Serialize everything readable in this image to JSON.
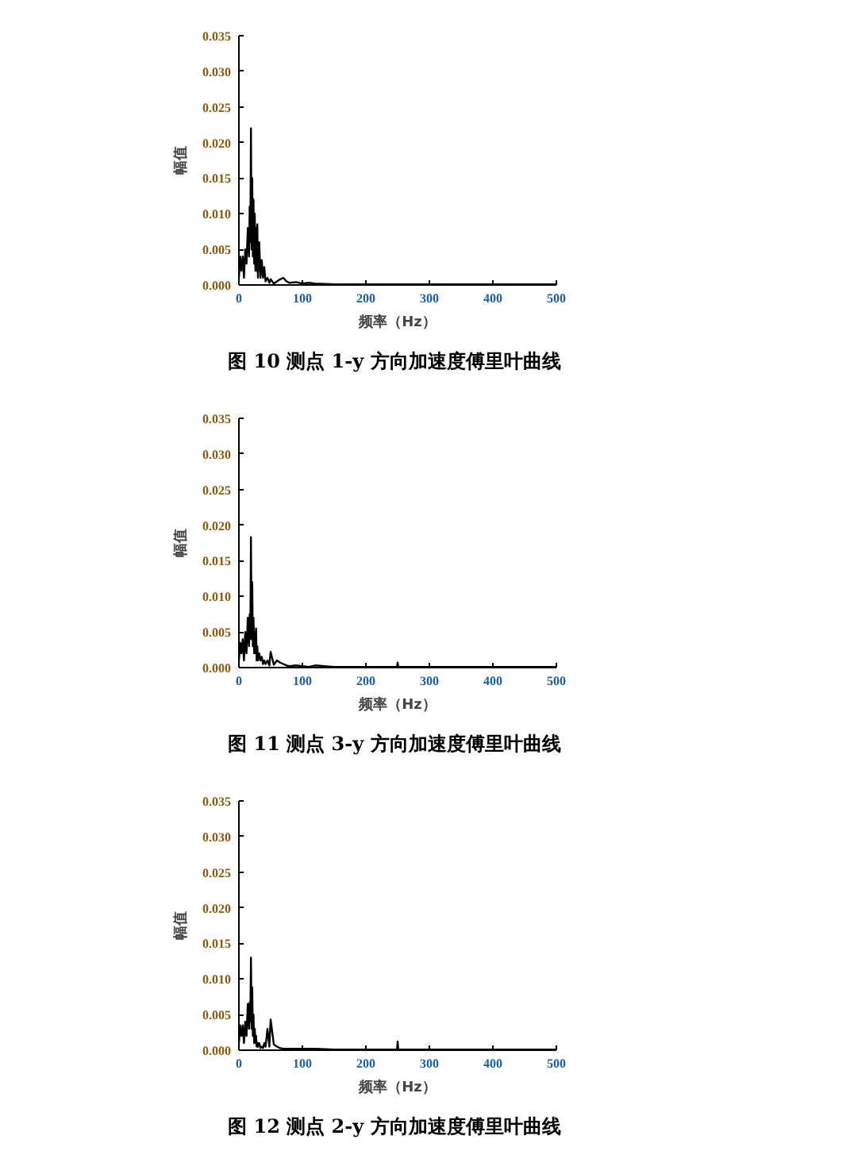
{
  "chart_data": [
    {
      "type": "line",
      "title": "图 10  测点 1-y 方向加速度傅里叶曲线",
      "xlabel": "频率（Hz）",
      "ylabel": "幅值",
      "xlim": [
        0,
        500
      ],
      "xticks": [
        0,
        100,
        200,
        300,
        400,
        500
      ],
      "ylim": [
        0,
        0.035
      ],
      "yticks": [
        {
          "value": 0,
          "label": "0.000"
        },
        {
          "value": 0.005,
          "label": "0.005"
        },
        {
          "value": 0.01,
          "label": "0.010"
        },
        {
          "value": 0.015,
          "label": "0.015"
        },
        {
          "value": 0.02,
          "label": "0.020"
        },
        {
          "value": 0.025,
          "label": "0.025"
        },
        {
          "value": 0.03,
          "label": "0.030"
        },
        {
          "value": 0.035,
          "label": "0.035"
        }
      ],
      "x": [
        0,
        2,
        4,
        6,
        8,
        10,
        12,
        14,
        16,
        17,
        18,
        19,
        20,
        21,
        22,
        23,
        24,
        25,
        26,
        27,
        28,
        29,
        30,
        32,
        34,
        36,
        38,
        40,
        42,
        45,
        48,
        50,
        55,
        60,
        65,
        70,
        75,
        80,
        90,
        100,
        110,
        120,
        150,
        200,
        249,
        250,
        251,
        300,
        350,
        400,
        450,
        500
      ],
      "series": [
        {
          "color": "#000000",
          "values": [
            0.001,
            0.004,
            0.002,
            0.004,
            0.001,
            0.005,
            0.003,
            0.008,
            0.004,
            0.011,
            0.006,
            0.022,
            0.005,
            0.015,
            0.004,
            0.012,
            0.003,
            0.01,
            0.002,
            0.008,
            0.002,
            0.0085,
            0.001,
            0.006,
            0.001,
            0.0035,
            0.001,
            0.0025,
            0.0005,
            0.001,
            0.0003,
            0.0008,
            0.0002,
            0.0005,
            0.0008,
            0.001,
            0.0005,
            0.0003,
            0.0004,
            0.0002,
            0.0003,
            0.0002,
            0.0001,
            0.0001,
            0.0001,
            0.0001,
            0.0001,
            0.0001,
            0.0001,
            0.0001,
            0.0001,
            0.0001
          ]
        }
      ]
    },
    {
      "type": "line",
      "title": "图 11  测点 3-y 方向加速度傅里叶曲线",
      "xlabel": "频率（Hz）",
      "ylabel": "幅值",
      "xlim": [
        0,
        500
      ],
      "xticks": [
        0,
        100,
        200,
        300,
        400,
        500
      ],
      "ylim": [
        0,
        0.035
      ],
      "yticks": [
        {
          "value": 0,
          "label": "0.000"
        },
        {
          "value": 0.005,
          "label": "0.005"
        },
        {
          "value": 0.01,
          "label": "0.010"
        },
        {
          "value": 0.015,
          "label": "0.015"
        },
        {
          "value": 0.02,
          "label": "0.020"
        },
        {
          "value": 0.025,
          "label": "0.025"
        },
        {
          "value": 0.03,
          "label": "0.030"
        },
        {
          "value": 0.035,
          "label": "0.035"
        }
      ],
      "x": [
        0,
        2,
        4,
        6,
        8,
        10,
        12,
        14,
        16,
        17,
        18,
        19,
        20,
        21,
        22,
        23,
        24,
        25,
        26,
        27,
        28,
        29,
        30,
        32,
        34,
        36,
        38,
        40,
        42,
        45,
        48,
        50,
        55,
        60,
        65,
        70,
        75,
        80,
        90,
        100,
        110,
        120,
        150,
        200,
        249,
        250,
        251,
        300,
        350,
        400,
        450,
        500
      ],
      "series": [
        {
          "color": "#000000",
          "values": [
            0.001,
            0.0035,
            0.002,
            0.004,
            0.001,
            0.005,
            0.002,
            0.007,
            0.003,
            0.0075,
            0.004,
            0.0183,
            0.004,
            0.012,
            0.003,
            0.007,
            0.002,
            0.005,
            0.002,
            0.0055,
            0.001,
            0.003,
            0.001,
            0.002,
            0.001,
            0.0015,
            0.0005,
            0.001,
            0.0005,
            0.001,
            0.0003,
            0.0022,
            0.0004,
            0.001,
            0.0007,
            0.0005,
            0.0003,
            0.0002,
            0.0003,
            0.0002,
            0.0001,
            0.0003,
            0.0001,
            0.0001,
            0.0001,
            0.0007,
            0.0001,
            0.0001,
            0.0001,
            0.0001,
            0.0001,
            0.0001
          ]
        }
      ]
    },
    {
      "type": "line",
      "title": "图 12  测点 2-y 方向加速度傅里叶曲线",
      "xlabel": "频率（Hz）",
      "ylabel": "幅值",
      "xlim": [
        0,
        500
      ],
      "xticks": [
        0,
        100,
        200,
        300,
        400,
        500
      ],
      "ylim": [
        0,
        0.035
      ],
      "yticks": [
        {
          "value": 0,
          "label": "0.000"
        },
        {
          "value": 0.005,
          "label": "0.005"
        },
        {
          "value": 0.01,
          "label": "0.010"
        },
        {
          "value": 0.015,
          "label": "0.015"
        },
        {
          "value": 0.02,
          "label": "0.020"
        },
        {
          "value": 0.025,
          "label": "0.025"
        },
        {
          "value": 0.03,
          "label": "0.030"
        },
        {
          "value": 0.035,
          "label": "0.035"
        }
      ],
      "x": [
        0,
        2,
        4,
        6,
        8,
        10,
        12,
        14,
        16,
        17,
        18,
        19,
        20,
        21,
        22,
        23,
        24,
        25,
        26,
        27,
        28,
        29,
        30,
        32,
        34,
        36,
        38,
        40,
        42,
        45,
        48,
        50,
        55,
        60,
        65,
        70,
        75,
        80,
        90,
        100,
        110,
        120,
        150,
        200,
        249,
        250,
        251,
        300,
        350,
        400,
        450,
        500
      ],
      "series": [
        {
          "color": "#000000",
          "values": [
            0.001,
            0.0035,
            0.002,
            0.0035,
            0.001,
            0.004,
            0.002,
            0.0065,
            0.003,
            0.0067,
            0.004,
            0.013,
            0.003,
            0.0088,
            0.002,
            0.005,
            0.001,
            0.003,
            0.001,
            0.002,
            0.0005,
            0.001,
            0.0005,
            0.001,
            0.0003,
            0.0005,
            0.0003,
            0.001,
            0.0005,
            0.003,
            0.0005,
            0.0043,
            0.0008,
            0.0005,
            0.0003,
            0.0002,
            0.0002,
            0.0002,
            0.0002,
            0.0002,
            0.0002,
            0.0002,
            0.0001,
            0.0001,
            0.0001,
            0.0012,
            0.0001,
            0.0001,
            0.0001,
            0.0001,
            0.0001,
            0.0001
          ]
        }
      ]
    }
  ]
}
